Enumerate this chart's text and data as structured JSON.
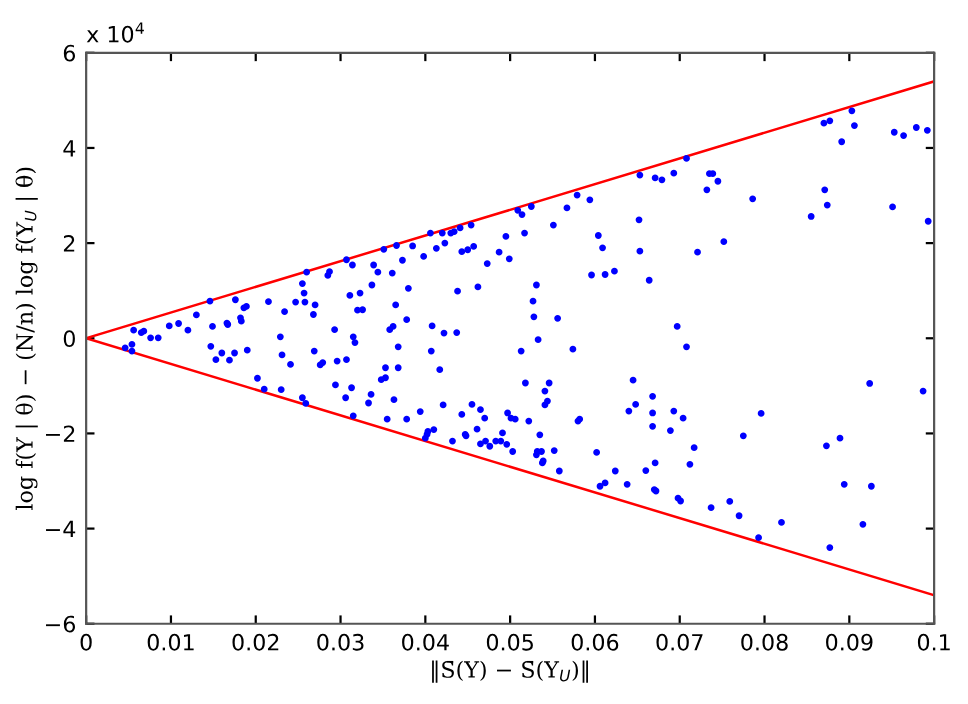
{
  "chart_data": {
    "type": "scatter",
    "xlabel": "‖S̄(Y) − S̄(Y$_{U}$)‖",
    "ylabel": "log f(Y | θ) − (N/n) log f(Y$_{U}$ | θ)",
    "annotations": [
      "x 10$^{4}$"
    ],
    "xlim": [
      0,
      0.1
    ],
    "ylim": [
      -6,
      6
    ],
    "xticks": [
      0,
      0.01,
      0.02,
      0.03,
      0.04,
      0.05,
      0.06,
      0.07,
      0.08,
      0.09,
      0.1
    ],
    "yticks": [
      {
        "value": -6,
        "label": "−6"
      },
      {
        "value": -4,
        "label": "−4"
      },
      {
        "value": -2,
        "label": "−2"
      },
      0,
      2,
      4,
      6
    ],
    "grid": false,
    "marker": "circle",
    "series": [
      {
        "color": "#0000ff",
        "x": [
          0.0046,
          0.0054,
          0.0054,
          0.0056,
          0.0065,
          0.0068,
          0.0076,
          0.0085,
          0.0098,
          0.0109,
          0.012,
          0.013,
          0.0146,
          0.0147,
          0.0149,
          0.0153,
          0.016,
          0.0166,
          0.0167,
          0.0169,
          0.0175,
          0.0176,
          0.0182,
          0.0183,
          0.0186,
          0.0189,
          0.019,
          0.0202,
          0.021,
          0.0215,
          0.0229,
          0.023,
          0.0231,
          0.0234,
          0.0241,
          0.0247,
          0.0255,
          0.0255,
          0.0257,
          0.0258,
          0.0259,
          0.026,
          0.0268,
          0.0269,
          0.027,
          0.0276,
          0.0279,
          0.0285,
          0.0287,
          0.0293,
          0.0294,
          0.0296,
          0.0306,
          0.0307,
          0.0307,
          0.0311,
          0.0313,
          0.0314,
          0.0315,
          0.0317,
          0.0315,
          0.032,
          0.0323,
          0.0326,
          0.0333,
          0.0336,
          0.0337,
          0.0339,
          0.0344,
          0.0348,
          0.0351,
          0.0353,
          0.0353,
          0.0355,
          0.0358,
          0.0361,
          0.0362,
          0.0363,
          0.0365,
          0.0366,
          0.0368,
          0.0368,
          0.0373,
          0.0378,
          0.038,
          0.0378,
          0.0385,
          0.0394,
          0.0398,
          0.04,
          0.0402,
          0.0403,
          0.0406,
          0.0407,
          0.0408,
          0.041,
          0.0413,
          0.0417,
          0.042,
          0.0421,
          0.0422,
          0.0423,
          0.043,
          0.0432,
          0.0434,
          0.0437,
          0.0438,
          0.0441,
          0.0443,
          0.0443,
          0.0447,
          0.0448,
          0.045,
          0.0454,
          0.0455,
          0.0457,
          0.0461,
          0.0462,
          0.0465,
          0.0465,
          0.047,
          0.0471,
          0.0473,
          0.0476,
          0.0483,
          0.0487,
          0.0489,
          0.0491,
          0.0495,
          0.0496,
          0.0497,
          0.0499,
          0.0501,
          0.0503,
          0.0506,
          0.0509,
          0.0514,
          0.0513,
          0.0517,
          0.0518,
          0.0522,
          0.0525,
          0.0528,
          0.0527,
          0.0531,
          0.0531,
          0.0532,
          0.0533,
          0.0535,
          0.0537,
          0.0538,
          0.0539,
          0.0541,
          0.0541,
          0.0544,
          0.0546,
          0.0551,
          0.0552,
          0.0556,
          0.0558,
          0.0567,
          0.0574,
          0.0579,
          0.058,
          0.0582,
          0.0594,
          0.0596,
          0.0602,
          0.0604,
          0.0606,
          0.0609,
          0.0612,
          0.0612,
          0.0623,
          0.0624,
          0.0638,
          0.064,
          0.0645,
          0.0648,
          0.0652,
          0.0653,
          0.0671,
          0.0679,
          0.0693,
          0.0653,
          0.0664,
          0.066,
          0.0668,
          0.0668,
          0.0668,
          0.067,
          0.0672,
          0.0671,
          0.0689,
          0.0693,
          0.0697,
          0.0698,
          0.0701,
          0.0704,
          0.0708,
          0.0708,
          0.0712,
          0.0717,
          0.0721,
          0.0732,
          0.0735,
          0.0739,
          0.0737,
          0.0745,
          0.0752,
          0.0759,
          0.077,
          0.0775,
          0.0786,
          0.0793,
          0.0796,
          0.082,
          0.0855,
          0.087,
          0.0877,
          0.0871,
          0.0874,
          0.0873,
          0.0877,
          0.0889,
          0.0891,
          0.0894,
          0.0903,
          0.0906,
          0.0916,
          0.0924,
          0.0926,
          0.0951,
          0.0953,
          0.0964,
          0.0979,
          0.0987,
          0.0992,
          0.0993
        ],
        "values": [
          -0.2,
          -0.13,
          -0.27,
          0.17,
          0.12,
          0.15,
          0.01,
          0.01,
          0.26,
          0.31,
          0.17,
          0.49,
          0.78,
          -0.17,
          0.25,
          -0.45,
          -0.31,
          0.32,
          0.29,
          -0.46,
          -0.31,
          0.81,
          0.43,
          0.36,
          0.64,
          0.67,
          -0.25,
          -0.84,
          -1.07,
          0.77,
          0.03,
          -1.08,
          -0.35,
          0.56,
          -0.55,
          0.76,
          1.15,
          -1.25,
          0.95,
          0.76,
          -1.37,
          1.39,
          0.5,
          -0.27,
          0.7,
          -0.56,
          -0.51,
          1.32,
          1.4,
          0.18,
          -0.98,
          -0.48,
          -1.25,
          -0.45,
          1.65,
          0.9,
          -1.04,
          1.54,
          0.03,
          -0.09,
          -1.63,
          0.59,
          0.95,
          0.6,
          -1.36,
          -1.18,
          1.12,
          1.54,
          1.39,
          -0.87,
          1.87,
          -0.62,
          -0.83,
          -1.7,
          0.18,
          1.37,
          0.25,
          -1.29,
          0.7,
          1.95,
          -0.18,
          -0.62,
          1.64,
          -1.7,
          1.05,
          0.39,
          1.94,
          -1.54,
          1.72,
          -2.1,
          -2.02,
          -1.96,
          2.21,
          -0.27,
          0.26,
          -1.92,
          1.89,
          -0.66,
          2.21,
          -1.4,
          0.11,
          2.0,
          2.21,
          -2.16,
          2.24,
          0.12,
          0.99,
          2.32,
          -1.6,
          1.82,
          -2.02,
          -2.05,
          1.86,
          2.38,
          -1.39,
          1.93,
          -1.91,
          1.08,
          -1.5,
          -2.22,
          -1.68,
          -2.16,
          1.57,
          -2.27,
          -2.16,
          1.81,
          -2.16,
          -1.99,
          2.14,
          -2.23,
          -1.57,
          1.67,
          -1.68,
          -2.38,
          -1.7,
          2.69,
          2.6,
          -0.27,
          2.21,
          -0.94,
          -1.74,
          2.77,
          0.45,
          0.78,
          1.12,
          -2.45,
          -2.38,
          -0.03,
          -2.03,
          -2.38,
          -2.62,
          -2.58,
          -1.11,
          -1.4,
          -1.32,
          -0.94,
          2.38,
          -2.36,
          0.42,
          -2.79,
          2.74,
          -0.23,
          3.01,
          -1.74,
          -1.7,
          2.91,
          1.33,
          -2.4,
          2.16,
          -3.11,
          1.9,
          -3.04,
          1.34,
          1.41,
          -2.79,
          -3.07,
          -1.53,
          -0.88,
          -1.39,
          2.49,
          3.43,
          3.37,
          3.33,
          3.47,
          1.83,
          1.22,
          -2.78,
          -1.22,
          -1.57,
          -1.85,
          -3.18,
          -3.21,
          -2.62,
          -1.94,
          -1.53,
          0.25,
          -3.36,
          -3.42,
          -1.68,
          -0.18,
          3.78,
          -2.65,
          -2.3,
          1.81,
          3.12,
          3.46,
          3.46,
          -3.56,
          3.3,
          2.03,
          -3.43,
          -3.73,
          -2.05,
          2.93,
          -4.19,
          -1.58,
          -3.87,
          2.56,
          4.52,
          4.57,
          3.12,
          2.8,
          -2.26,
          -4.4,
          -2.1,
          4.13,
          -3.07,
          4.78,
          4.47,
          -3.91,
          -0.95,
          -3.11,
          2.76,
          4.33,
          4.26,
          4.43,
          -1.11,
          4.37,
          2.46
        ]
      },
      {
        "type": "line",
        "marker": "none",
        "color": "#ff0000",
        "x": [
          0,
          0.1
        ],
        "values": [
          0,
          5.4
        ]
      },
      {
        "type": "line",
        "marker": "none",
        "color": "#ff0000",
        "x": [
          0,
          0.1
        ],
        "values": [
          0,
          -5.4
        ]
      }
    ]
  }
}
